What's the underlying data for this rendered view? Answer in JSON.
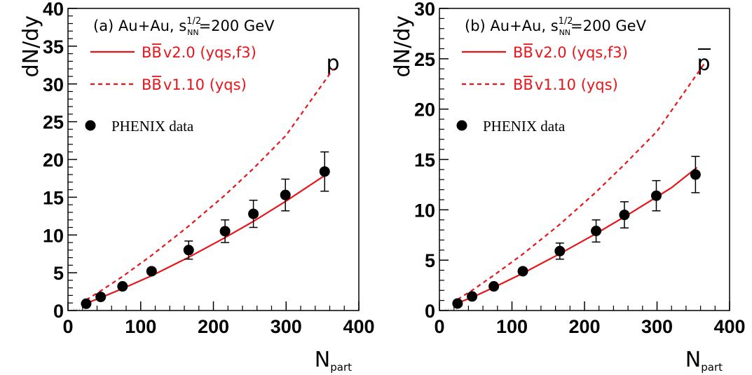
{
  "chart_data": [
    {
      "type": "line",
      "panel_label": "(a) Au+Au, s",
      "energy": "=200 GeV",
      "sqrt_sup": "1/2",
      "sqrt_sub": "NN",
      "species_label": "p",
      "species_bar": false,
      "xlabel": "N",
      "xlabel_sub": "part",
      "ylabel": "dN/dy",
      "xlim": [
        0,
        400
      ],
      "ylim": [
        0,
        40
      ],
      "xticks": [
        "0",
        "100",
        "200",
        "300",
        "400"
      ],
      "yticks": [
        "0",
        "5",
        "10",
        "15",
        "20",
        "25",
        "30",
        "35",
        "40"
      ],
      "series": [
        {
          "name": "BB̅ v2.0 (yqs,f3)",
          "name_parts": [
            "BB",
            "v2.0 (yqs,f3)"
          ],
          "style": "solid",
          "color": "#e8141a",
          "x": [
            25,
            45,
            75,
            115,
            165,
            215,
            255,
            300,
            355
          ],
          "y": [
            0.95,
            1.7,
            2.9,
            4.6,
            7.0,
            9.6,
            11.8,
            14.5,
            18.0
          ]
        },
        {
          "name": "BB̅ v1.10 (yqs)",
          "name_parts": [
            "BB",
            "v1.10 (yqs)"
          ],
          "style": "dashed",
          "color": "#e8141a",
          "x": [
            25,
            45,
            75,
            115,
            165,
            215,
            255,
            300,
            365
          ],
          "y": [
            1.4,
            2.6,
            4.5,
            7.3,
            11.1,
            15.2,
            18.8,
            23.2,
            32.0
          ]
        },
        {
          "name": "PHENIX data",
          "style": "markers",
          "color": "#000000",
          "x": [
            25,
            45,
            75,
            115,
            166,
            216,
            255,
            299,
            353
          ],
          "y": [
            0.9,
            1.8,
            3.2,
            5.2,
            8.0,
            10.5,
            12.8,
            15.3,
            18.4
          ],
          "err": [
            0,
            0,
            0,
            0,
            1.2,
            1.5,
            1.8,
            2.1,
            2.6
          ]
        }
      ]
    },
    {
      "type": "line",
      "panel_label": "(b) Au+Au, s",
      "energy": "=200 GeV",
      "sqrt_sup": "1/2",
      "sqrt_sub": "NN",
      "species_label": "p",
      "species_bar": true,
      "xlabel": "N",
      "xlabel_sub": "part",
      "ylabel": "dN/dy",
      "xlim": [
        0,
        400
      ],
      "ylim": [
        0,
        30
      ],
      "xticks": [
        "0",
        "100",
        "200",
        "300",
        "400"
      ],
      "yticks": [
        "0",
        "5",
        "10",
        "15",
        "20",
        "25",
        "30"
      ],
      "series": [
        {
          "name": "BB̅ v2.0 (yqs,f3)",
          "name_parts": [
            "BB",
            "v2.0 (yqs,f3)"
          ],
          "style": "solid",
          "color": "#e8141a",
          "x": [
            25,
            45,
            75,
            115,
            165,
            215,
            255,
            300,
            320,
            355
          ],
          "y": [
            0.75,
            1.3,
            2.3,
            3.7,
            5.6,
            7.6,
            9.3,
            11.3,
            12.2,
            14.2
          ]
        },
        {
          "name": "BB̅ v1.10 (yqs)",
          "name_parts": [
            "BB",
            "v1.10 (yqs)"
          ],
          "style": "dashed",
          "color": "#e8141a",
          "x": [
            25,
            45,
            75,
            115,
            165,
            215,
            255,
            300,
            365
          ],
          "y": [
            1.1,
            2.0,
            3.5,
            5.6,
            8.5,
            11.7,
            14.5,
            17.8,
            24.5
          ]
        },
        {
          "name": "PHENIX data",
          "style": "markers",
          "color": "#000000",
          "x": [
            25,
            45,
            75,
            115,
            166,
            216,
            255,
            299,
            353
          ],
          "y": [
            0.7,
            1.4,
            2.4,
            3.9,
            5.9,
            7.9,
            9.5,
            11.4,
            13.5
          ],
          "err": [
            0,
            0,
            0,
            0,
            0.8,
            1.1,
            1.3,
            1.5,
            1.8
          ]
        }
      ]
    }
  ]
}
